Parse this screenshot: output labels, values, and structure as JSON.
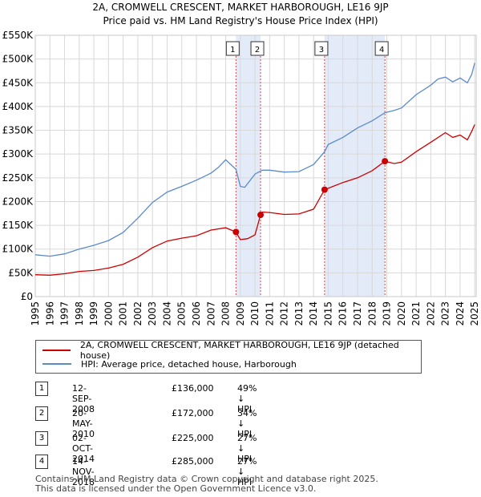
{
  "chart_data": {
    "type": "line",
    "title": "2A, CROMWELL CRESCENT, MARKET HARBOROUGH, LE16 9JP",
    "subtitle": "Price paid vs. HM Land Registry's House Price Index (HPI)",
    "xlabel": "",
    "ylabel": "",
    "xlim": [
      1995,
      2025.1
    ],
    "ylim": [
      0,
      550000
    ],
    "x_ticks": [
      "1995",
      "1996",
      "1997",
      "1998",
      "1999",
      "2000",
      "2001",
      "2002",
      "2003",
      "2004",
      "2005",
      "2006",
      "2007",
      "2008",
      "2009",
      "2010",
      "2011",
      "2012",
      "2013",
      "2014",
      "2015",
      "2016",
      "2017",
      "2018",
      "2019",
      "2020",
      "2021",
      "2022",
      "2023",
      "2024",
      "2025"
    ],
    "y_ticks": [
      {
        "value": 0,
        "label": "£0"
      },
      {
        "value": 50000,
        "label": "£50K"
      },
      {
        "value": 100000,
        "label": "£100K"
      },
      {
        "value": 150000,
        "label": "£150K"
      },
      {
        "value": 200000,
        "label": "£200K"
      },
      {
        "value": 250000,
        "label": "£250K"
      },
      {
        "value": 300000,
        "label": "£300K"
      },
      {
        "value": 350000,
        "label": "£350K"
      },
      {
        "value": 400000,
        "label": "£400K"
      },
      {
        "value": 450000,
        "label": "£450K"
      },
      {
        "value": 500000,
        "label": "£500K"
      },
      {
        "value": 550000,
        "label": "£550K"
      }
    ],
    "grid": true,
    "shaded_ranges": [
      [
        2008.7,
        2010.38
      ],
      [
        2014.75,
        2018.87
      ]
    ],
    "series": [
      {
        "name": "2A, CROMWELL CRESCENT, MARKET HARBOROUGH, LE16 9JP (detached house)",
        "color": "#cc0000",
        "x": [
          1995,
          1996,
          1997,
          1998,
          1999,
          2000,
          2001,
          2002,
          2003,
          2004,
          2005,
          2006,
          2007,
          2008,
          2008.7,
          2009.0,
          2009.5,
          2010.0,
          2010.38,
          2010.5,
          2011,
          2012,
          2013,
          2014,
          2014.75,
          2015,
          2016,
          2017,
          2018,
          2018.87,
          2019.5,
          2020,
          2021,
          2022,
          2023,
          2023.5,
          2024,
          2024.5,
          2024.8,
          2025
        ],
        "y": [
          46000,
          45000,
          48000,
          53000,
          55000,
          60000,
          68000,
          83000,
          103000,
          117000,
          123000,
          128000,
          140000,
          145000,
          136000,
          120000,
          122000,
          130000,
          172000,
          178000,
          177000,
          173000,
          174000,
          184000,
          225000,
          228000,
          240000,
          250000,
          265000,
          285000,
          280000,
          283000,
          305000,
          325000,
          345000,
          335000,
          340000,
          330000,
          348000,
          362000
        ]
      },
      {
        "name": "HPI: Average price, detached house, Harborough",
        "color": "#5b8bc9",
        "x": [
          1995,
          1996,
          1997,
          1998,
          1999,
          2000,
          2001,
          2002,
          2003,
          2004,
          2005,
          2006,
          2007,
          2007.5,
          2008,
          2008.7,
          2009.0,
          2009.3,
          2010,
          2010.5,
          2011,
          2012,
          2013,
          2014,
          2014.75,
          2015,
          2016,
          2017,
          2018,
          2018.87,
          2019.5,
          2020,
          2021,
          2022,
          2022.5,
          2023,
          2023.5,
          2024,
          2024.5,
          2024.8,
          2025
        ],
        "y": [
          88000,
          85000,
          90000,
          100000,
          108000,
          118000,
          135000,
          165000,
          198000,
          220000,
          232000,
          245000,
          260000,
          272000,
          288000,
          268000,
          232000,
          230000,
          258000,
          266000,
          266000,
          262000,
          263000,
          278000,
          305000,
          320000,
          335000,
          355000,
          370000,
          387000,
          392000,
          397000,
          425000,
          445000,
          458000,
          462000,
          452000,
          460000,
          450000,
          468000,
          492000
        ]
      }
    ],
    "sales": [
      {
        "id": "1",
        "x": 2008.7,
        "y": 136000
      },
      {
        "id": "2",
        "x": 2010.38,
        "y": 172000
      },
      {
        "id": "3",
        "x": 2014.75,
        "y": 225000
      },
      {
        "id": "4",
        "x": 2018.87,
        "y": 285000
      }
    ]
  },
  "legend": {
    "property_label": "2A, CROMWELL CRESCENT, MARKET HARBOROUGH, LE16 9JP (detached house)",
    "hpi_label": "HPI: Average price, detached house, Harborough"
  },
  "transactions": [
    {
      "num": "1",
      "date": "12-SEP-2008",
      "price": "£136,000",
      "hpi": "49% ↓ HPI"
    },
    {
      "num": "2",
      "date": "20-MAY-2010",
      "price": "£172,000",
      "hpi": "34% ↓ HPI"
    },
    {
      "num": "3",
      "date": "02-OCT-2014",
      "price": "£225,000",
      "hpi": "27% ↓ HPI"
    },
    {
      "num": "4",
      "date": "14-NOV-2018",
      "price": "£285,000",
      "hpi": "27% ↓ HPI"
    }
  ],
  "footer": {
    "line1": "Contains HM Land Registry data © Crown copyright and database right 2025.",
    "line2": "This data is licensed under the Open Government Licence v3.0."
  }
}
